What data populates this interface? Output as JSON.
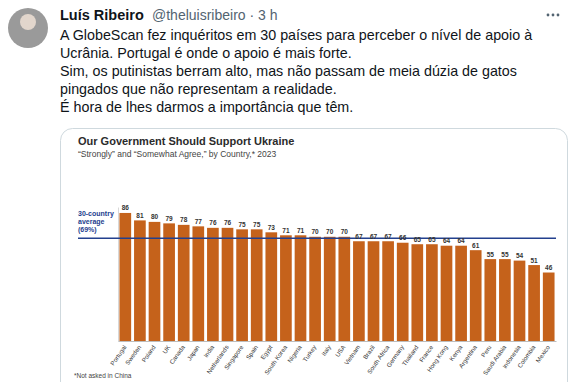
{
  "tweet": {
    "name": "Luís Ribeiro",
    "meta": "@theluisribeiro · 3 h",
    "lines": [
      "A GlobeScan fez inquéritos em 30 países para perceber o nível de apoio à",
      "Ucrânia. Portugal é onde o apoio é mais forte.",
      "Sim, os putinistas berram alto, mas não passam de meia dúzia de gatos",
      "pingados que não representam a realidade.",
      "É hora de lhes darmos a importância que têm."
    ]
  },
  "chart_data": {
    "type": "bar",
    "title": "Our Government Should Support Ukraine",
    "subtitle": "“Strongly” and “Somewhat Agree,” by Country,* 2023",
    "categories": [
      "Portugal",
      "Sweden",
      "Poland",
      "UK",
      "Canada",
      "Japan",
      "India",
      "Netherlands",
      "Singapore",
      "Spain",
      "Egypt",
      "South Korea",
      "Nigeria",
      "Turkey",
      "Italy",
      "USA",
      "Vietnam",
      "Brazil",
      "South Africa",
      "Germany",
      "Thailand",
      "France",
      "Hong Kong",
      "Kenya",
      "Argentina",
      "Peru",
      "Saudi Arabia",
      "Indonesia",
      "Colombia",
      "Mexico"
    ],
    "values": [
      86,
      81,
      80,
      79,
      78,
      77,
      76,
      76,
      75,
      75,
      73,
      71,
      71,
      70,
      70,
      70,
      67,
      67,
      67,
      66,
      65,
      65,
      64,
      64,
      61,
      55,
      55,
      54,
      51,
      46
    ],
    "color": "#c5621b",
    "ylim": [
      0,
      90
    ],
    "yticks": [],
    "tick_labels": "x",
    "data_labels": true,
    "grid": false,
    "average": 69,
    "average_label": "30-country average (69%)",
    "footnote": "*Not asked in China"
  }
}
